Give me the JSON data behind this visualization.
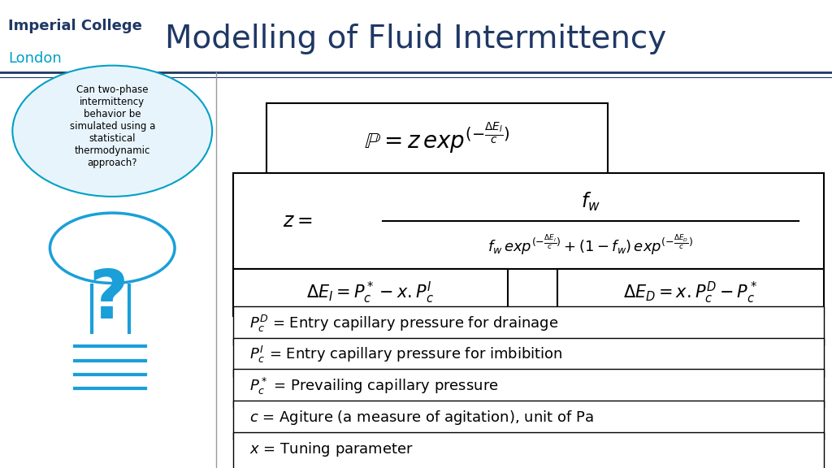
{
  "title": "Modelling of Fluid Intermittency",
  "title_color": "#1F3864",
  "title_fontsize": 28,
  "bg_color": "#FFFFFF",
  "header_line_color": "#1F3864",
  "ic_london_line1": "Imperial College",
  "ic_london_line2": "London",
  "ic_color_line1": "#1F3864",
  "ic_color_line2": "#00A0C6",
  "bubble_text": "Can two-phase\nintermittency\nbehavior be\nsimulated using a\nstatistical\nthermodynamic\napproach?",
  "bubble_color": "#E8F4FB",
  "bubble_border_color": "#00A0C6",
  "formula1": "$\\mathbb{P} = z\\, exp^{(-\\frac{\\Delta E_I}{c})}$",
  "formula2_num": "$f_w$",
  "formula2_denom": "$f_w\\, exp^{(-\\frac{\\Delta E_I}{c})} + (1 - f_w)\\, exp^{(-\\frac{\\Delta E_D}{c})}$",
  "formula3_left": "$\\Delta E_I = P_c^* - x.P_c^I$",
  "formula3_right": "$\\Delta E_D = x.P_c^D - P_c^*$",
  "def1": "$P_c^D$ = Entry capillary pressure for drainage",
  "def2": "$P_c^I$ = Entry capillary pressure for imbibition",
  "def3": "$P_c^*$ = Prevailing capillary pressure",
  "def4": "$c$ = Agiture (a measure of agitation), unit of Pa",
  "def5": "$x$ = Tuning parameter",
  "box_color": "#000000",
  "box_facecolor": "#FFFFFF",
  "text_color": "#000000"
}
